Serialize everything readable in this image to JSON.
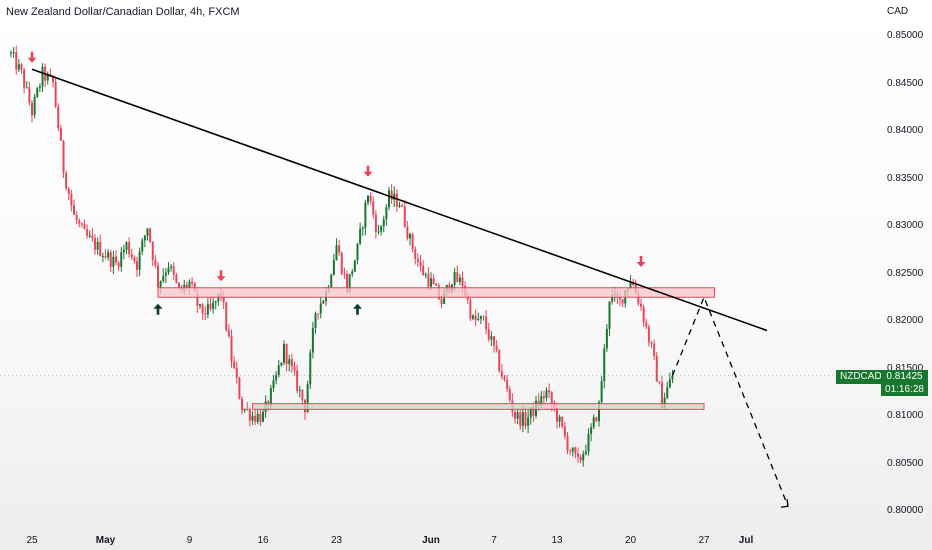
{
  "header": {
    "title": "New Zealand Dollar/Canadian Dollar, 4h, FXCM",
    "currency": "CAD"
  },
  "price_axis": {
    "labels": [
      "0.85000",
      "0.84500",
      "0.84000",
      "0.83500",
      "0.83000",
      "0.82500",
      "0.82000",
      "0.81500",
      "0.81000",
      "0.80500",
      "0.80000"
    ]
  },
  "time_axis": {
    "labels": [
      {
        "text": "25",
        "bold": false
      },
      {
        "text": "May",
        "bold": true
      },
      {
        "text": "9",
        "bold": false
      },
      {
        "text": "16",
        "bold": false
      },
      {
        "text": "23",
        "bold": false
      },
      {
        "text": "Jun",
        "bold": true
      },
      {
        "text": "7",
        "bold": false
      },
      {
        "text": "13",
        "bold": false
      },
      {
        "text": "20",
        "bold": false
      },
      {
        "text": "27",
        "bold": false
      },
      {
        "text": "Jul",
        "bold": true
      }
    ]
  },
  "last_price": {
    "symbol": "NZDCAD",
    "price": "0.81425",
    "countdown": "01:16:28",
    "color": "#17772f"
  },
  "colors": {
    "up": "#17772f",
    "down": "#e8455a",
    "zone_fill": "#f7c6c9",
    "zone_stroke": "#e8455a",
    "trendline": "#000000"
  },
  "chart_data": {
    "type": "candlestick",
    "symbol": "NZDCAD",
    "ylim": [
      0.8,
      0.85
    ],
    "price_path": [
      [
        "Apr 23",
        0.848
      ],
      [
        "Apr 24",
        0.846
      ],
      [
        "Apr 25",
        0.842
      ],
      [
        "Apr 26",
        0.846
      ],
      [
        "Apr 27",
        0.845
      ],
      [
        "Apr 28",
        0.836
      ],
      [
        "Apr 29",
        0.831
      ],
      [
        "Apr 30",
        0.829
      ],
      [
        "May 1",
        0.827
      ],
      [
        "May 2",
        0.826
      ],
      [
        "May 3",
        0.828
      ],
      [
        "May 4",
        0.826
      ],
      [
        "May 5",
        0.83
      ],
      [
        "May 6",
        0.824
      ],
      [
        "May 7",
        0.826
      ],
      [
        "May 8",
        0.823
      ],
      [
        "May 9",
        0.824
      ],
      [
        "May 10",
        0.821
      ],
      [
        "May 11",
        0.821
      ],
      [
        "May 12",
        0.823
      ],
      [
        "May 13",
        0.816
      ],
      [
        "May 14",
        0.811
      ],
      [
        "May 15",
        0.81
      ],
      [
        "May 16",
        0.81
      ],
      [
        "May 17",
        0.813
      ],
      [
        "May 18",
        0.817
      ],
      [
        "May 19",
        0.814
      ],
      [
        "May 20",
        0.811
      ],
      [
        "May 21",
        0.821
      ],
      [
        "May 22",
        0.823
      ],
      [
        "May 23",
        0.828
      ],
      [
        "May 24",
        0.8235
      ],
      [
        "May 25",
        0.8275
      ],
      [
        "May 26",
        0.8335
      ],
      [
        "May 27",
        0.829
      ],
      [
        "May 28",
        0.833
      ],
      [
        "May 29",
        0.8325
      ],
      [
        "May 30",
        0.8285
      ],
      [
        "May 31",
        0.8255
      ],
      [
        "Jun 1",
        0.824
      ],
      [
        "Jun 2",
        0.822
      ],
      [
        "Jun 3",
        0.8245
      ],
      [
        "Jun 4",
        0.824
      ],
      [
        "Jun 5",
        0.82
      ],
      [
        "Jun 6",
        0.82
      ],
      [
        "Jun 7",
        0.817
      ],
      [
        "Jun 8",
        0.8135
      ],
      [
        "Jun 9",
        0.81
      ],
      [
        "Jun 10",
        0.8095
      ],
      [
        "Jun 11",
        0.811
      ],
      [
        "Jun 12",
        0.8125
      ],
      [
        "Jun 13",
        0.81
      ],
      [
        "Jun 14",
        0.807
      ],
      [
        "Jun 15",
        0.805
      ],
      [
        "Jun 16",
        0.8075
      ],
      [
        "Jun 17",
        0.811
      ],
      [
        "Jun 18",
        0.8225
      ],
      [
        "Jun 19",
        0.822
      ],
      [
        "Jun 20",
        0.8245
      ],
      [
        "Jun 21",
        0.8215
      ],
      [
        "Jun 22",
        0.817
      ],
      [
        "Jun 23",
        0.8115
      ],
      [
        "Jun 24",
        0.81425
      ]
    ],
    "trendline": {
      "from": [
        "Apr 25",
        0.8465
      ],
      "to": [
        "Jul 3",
        0.819
      ]
    },
    "zones": [
      {
        "name": "resistance",
        "from": "May 6",
        "to": "Jun 28",
        "low": 0.8225,
        "high": 0.8235
      },
      {
        "name": "support",
        "from": "May 15",
        "to": "Jun 27",
        "low": 0.8107,
        "high": 0.8113
      }
    ],
    "projection": [
      [
        "Jun 24",
        0.81425
      ],
      [
        "Jun 27",
        0.8225
      ],
      [
        "Jul 5",
        0.8005
      ]
    ],
    "arrows": [
      {
        "date": "Apr 25",
        "direction": "down",
        "price": 0.8475,
        "color": "#e8455a"
      },
      {
        "date": "May 26",
        "direction": "down",
        "price": 0.8355,
        "color": "#e8455a"
      },
      {
        "date": "Jun 21",
        "direction": "down",
        "price": 0.826,
        "color": "#e8455a"
      },
      {
        "date": "May 12",
        "direction": "down",
        "price": 0.8245,
        "color": "#e8455a"
      },
      {
        "date": "May 6",
        "direction": "up",
        "price": 0.8215,
        "color": "#0d3b2e"
      },
      {
        "date": "May 25",
        "direction": "up",
        "price": 0.8215,
        "color": "#0d3b2e"
      }
    ]
  }
}
